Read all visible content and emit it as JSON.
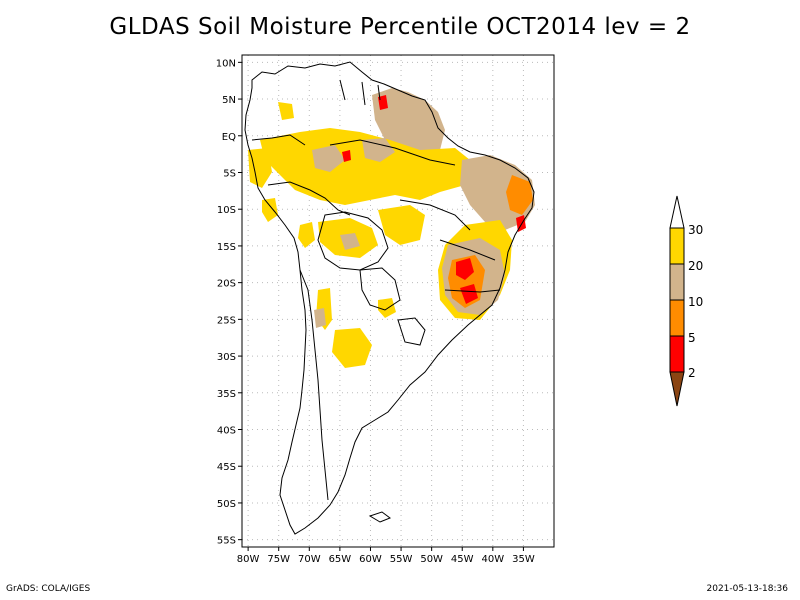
{
  "title": "GLDAS Soil Moisture Percentile OCT2014 lev = 2",
  "footer": {
    "left": "GrADS: COLA/IGES",
    "right": "2021-05-13-18:36"
  },
  "map": {
    "region": "South America",
    "projection": "latitude-longitude",
    "lon_range": [
      -81,
      -30
    ],
    "lat_range": [
      -56,
      11
    ],
    "gridlines": "dotted",
    "lat_ticks": [
      {
        "value": 10,
        "label": "10N"
      },
      {
        "value": 5,
        "label": "5N"
      },
      {
        "value": 0,
        "label": "EQ"
      },
      {
        "value": -5,
        "label": "5S"
      },
      {
        "value": -10,
        "label": "10S"
      },
      {
        "value": -15,
        "label": "15S"
      },
      {
        "value": -20,
        "label": "20S"
      },
      {
        "value": -25,
        "label": "25S"
      },
      {
        "value": -30,
        "label": "30S"
      },
      {
        "value": -35,
        "label": "35S"
      },
      {
        "value": -40,
        "label": "40S"
      },
      {
        "value": -45,
        "label": "45S"
      },
      {
        "value": -50,
        "label": "50S"
      },
      {
        "value": -55,
        "label": "55S"
      }
    ],
    "lon_ticks": [
      {
        "value": -80,
        "label": "80W"
      },
      {
        "value": -75,
        "label": "75W"
      },
      {
        "value": -70,
        "label": "70W"
      },
      {
        "value": -65,
        "label": "65W"
      },
      {
        "value": -60,
        "label": "60W"
      },
      {
        "value": -55,
        "label": "55W"
      },
      {
        "value": -50,
        "label": "50W"
      },
      {
        "value": -45,
        "label": "45W"
      },
      {
        "value": -40,
        "label": "40W"
      },
      {
        "value": -35,
        "label": "35W"
      }
    ],
    "colors": {
      "p_below_2": "#8b4513",
      "p_2_5": "#ff0000",
      "p_5_10": "#ff8c00",
      "p_10_20": "#d2b48c",
      "p_20_30": "#ffd700",
      "above_30": "#ffffff",
      "outline": "#000000",
      "gridline": "#bbbbbb"
    }
  },
  "colorbar": {
    "labels": [
      "30",
      "20",
      "10",
      "5",
      "2"
    ],
    "bins": [
      {
        "range": "above 30",
        "color": "#ffffff"
      },
      {
        "range": "20-30",
        "color": "#ffd700"
      },
      {
        "range": "10-20",
        "color": "#d2b48c"
      },
      {
        "range": "5-10",
        "color": "#ff8c00"
      },
      {
        "range": "2-5",
        "color": "#ff0000"
      },
      {
        "range": "below 2",
        "color": "#8b4513"
      }
    ]
  }
}
